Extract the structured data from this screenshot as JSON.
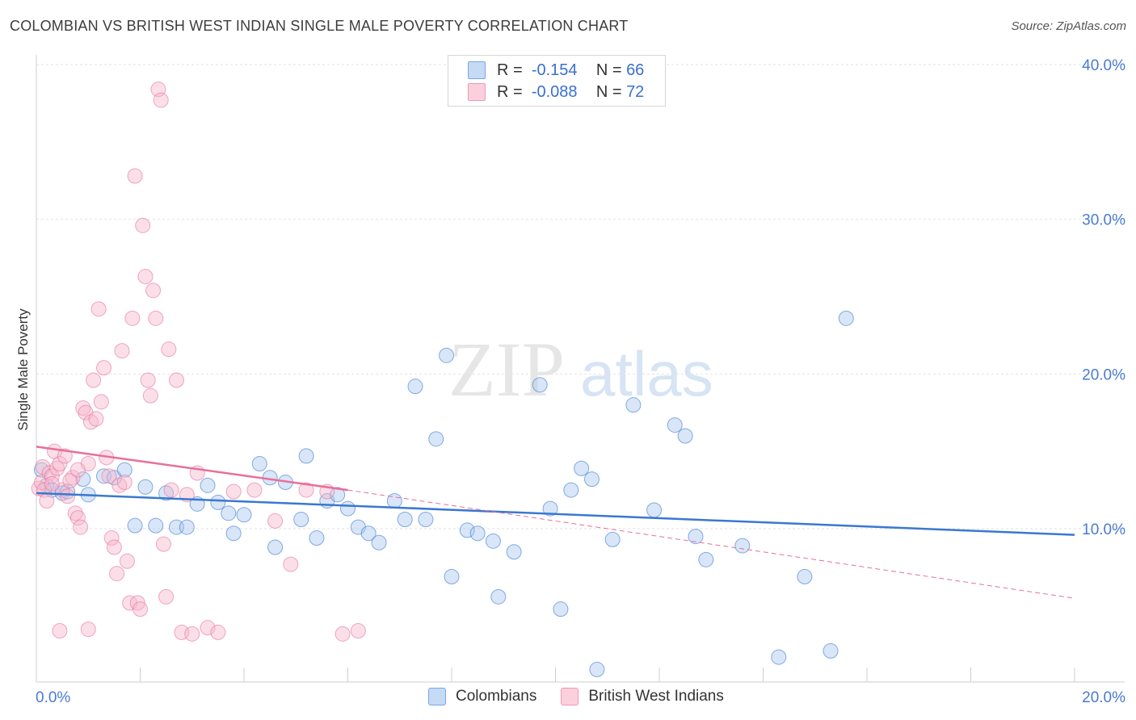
{
  "header": {
    "title": "COLOMBIAN VS BRITISH WEST INDIAN SINGLE MALE POVERTY CORRELATION CHART",
    "source": "Source: ZipAtlas.com"
  },
  "watermark": {
    "part1": "ZIP",
    "part2": "atlas"
  },
  "legend": {
    "rows": [
      {
        "r_label": "R =",
        "r_value": "-0.154",
        "n_label": "N =",
        "n_value": "66",
        "color": "#a8c8f0"
      },
      {
        "r_label": "R =",
        "r_value": "-0.088",
        "n_label": "N =",
        "n_value": "72",
        "color": "#f7b8cb"
      }
    ]
  },
  "bottom_legend": [
    "Colombians",
    "British West Indians"
  ],
  "chart_data": {
    "type": "scatter",
    "title": "COLOMBIAN VS BRITISH WEST INDIAN SINGLE MALE POVERTY CORRELATION CHART",
    "xlabel": "",
    "ylabel": "Single Male Poverty",
    "xlim": [
      0,
      20
    ],
    "ylim": [
      0,
      40
    ],
    "x_tick_labels": [
      "0.0%",
      "20.0%"
    ],
    "y_ticks": [
      10,
      20,
      30,
      40
    ],
    "y_tick_labels": [
      "10.0%",
      "20.0%",
      "30.0%",
      "40.0%"
    ],
    "grid": true,
    "legend_position": "top-center",
    "series": [
      {
        "name": "Colombians",
        "color": "#3a78d0",
        "fill": "#a8c8f0",
        "trend": {
          "x": [
            0,
            20
          ],
          "y": [
            12.3,
            9.6
          ],
          "style": "solid"
        },
        "points": [
          [
            0.1,
            13.8
          ],
          [
            0.2,
            12.8
          ],
          [
            0.3,
            12.5
          ],
          [
            0.5,
            12.3
          ],
          [
            0.6,
            12.4
          ],
          [
            0.9,
            13.2
          ],
          [
            1.0,
            12.2
          ],
          [
            1.3,
            13.4
          ],
          [
            1.5,
            13.3
          ],
          [
            1.7,
            13.8
          ],
          [
            1.9,
            10.2
          ],
          [
            2.1,
            12.7
          ],
          [
            2.3,
            10.2
          ],
          [
            2.5,
            12.3
          ],
          [
            2.7,
            10.1
          ],
          [
            2.9,
            10.1
          ],
          [
            3.1,
            11.6
          ],
          [
            3.3,
            12.8
          ],
          [
            3.5,
            11.7
          ],
          [
            3.7,
            11.0
          ],
          [
            3.8,
            9.7
          ],
          [
            4.0,
            10.9
          ],
          [
            4.3,
            14.2
          ],
          [
            4.5,
            13.3
          ],
          [
            4.6,
            8.8
          ],
          [
            4.8,
            13.0
          ],
          [
            5.1,
            10.6
          ],
          [
            5.2,
            14.7
          ],
          [
            5.4,
            9.4
          ],
          [
            5.6,
            11.8
          ],
          [
            5.8,
            12.2
          ],
          [
            6.0,
            11.3
          ],
          [
            6.2,
            10.1
          ],
          [
            6.4,
            9.7
          ],
          [
            6.6,
            9.1
          ],
          [
            6.9,
            11.8
          ],
          [
            7.1,
            10.6
          ],
          [
            7.3,
            19.2
          ],
          [
            7.5,
            10.6
          ],
          [
            7.7,
            15.8
          ],
          [
            7.9,
            21.2
          ],
          [
            8.0,
            6.9
          ],
          [
            8.3,
            9.9
          ],
          [
            8.5,
            9.7
          ],
          [
            8.8,
            9.2
          ],
          [
            8.9,
            5.6
          ],
          [
            9.2,
            8.5
          ],
          [
            9.7,
            19.3
          ],
          [
            9.9,
            11.3
          ],
          [
            10.1,
            4.8
          ],
          [
            10.3,
            12.5
          ],
          [
            10.5,
            13.9
          ],
          [
            10.7,
            13.2
          ],
          [
            10.8,
            0.9
          ],
          [
            11.1,
            9.3
          ],
          [
            11.5,
            18.0
          ],
          [
            11.9,
            11.2
          ],
          [
            12.3,
            16.7
          ],
          [
            12.5,
            16.0
          ],
          [
            12.7,
            9.5
          ],
          [
            12.9,
            8.0
          ],
          [
            13.6,
            8.9
          ],
          [
            14.3,
            1.7
          ],
          [
            14.8,
            6.9
          ],
          [
            15.3,
            2.1
          ],
          [
            15.6,
            23.6
          ]
        ]
      },
      {
        "name": "British West Indians",
        "color": "#e86f99",
        "fill": "#f7b8cb",
        "trend": {
          "x": [
            0,
            6.0
          ],
          "y": [
            15.3,
            12.5
          ],
          "style": "solid",
          "dashed_x": [
            6.0,
            20
          ],
          "dashed_y": [
            12.5,
            5.5
          ]
        },
        "points": [
          [
            0.05,
            12.6
          ],
          [
            0.1,
            13.0
          ],
          [
            0.12,
            14.0
          ],
          [
            0.15,
            12.5
          ],
          [
            0.2,
            11.8
          ],
          [
            0.25,
            13.6
          ],
          [
            0.3,
            13.4
          ],
          [
            0.35,
            15.0
          ],
          [
            0.4,
            13.9
          ],
          [
            0.45,
            14.2
          ],
          [
            0.5,
            12.5
          ],
          [
            0.55,
            14.7
          ],
          [
            0.6,
            12.1
          ],
          [
            0.7,
            13.3
          ],
          [
            0.75,
            11.0
          ],
          [
            0.8,
            10.7
          ],
          [
            0.85,
            10.1
          ],
          [
            0.9,
            17.8
          ],
          [
            0.95,
            17.5
          ],
          [
            1.0,
            14.2
          ],
          [
            1.05,
            16.9
          ],
          [
            1.1,
            19.6
          ],
          [
            1.15,
            17.1
          ],
          [
            1.2,
            24.2
          ],
          [
            1.25,
            18.2
          ],
          [
            1.3,
            20.4
          ],
          [
            1.35,
            14.6
          ],
          [
            1.4,
            13.4
          ],
          [
            1.45,
            9.4
          ],
          [
            1.5,
            8.8
          ],
          [
            1.55,
            7.1
          ],
          [
            1.6,
            12.8
          ],
          [
            1.65,
            21.5
          ],
          [
            1.7,
            13.0
          ],
          [
            1.75,
            7.9
          ],
          [
            1.8,
            5.2
          ],
          [
            1.85,
            23.6
          ],
          [
            1.9,
            32.8
          ],
          [
            1.95,
            5.2
          ],
          [
            2.0,
            4.8
          ],
          [
            2.05,
            29.6
          ],
          [
            2.1,
            26.3
          ],
          [
            2.15,
            19.6
          ],
          [
            2.2,
            18.6
          ],
          [
            2.25,
            25.4
          ],
          [
            2.3,
            23.6
          ],
          [
            2.35,
            38.4
          ],
          [
            2.4,
            37.7
          ],
          [
            2.45,
            9.0
          ],
          [
            2.5,
            5.6
          ],
          [
            2.55,
            21.6
          ],
          [
            2.6,
            12.5
          ],
          [
            2.7,
            19.6
          ],
          [
            2.8,
            3.3
          ],
          [
            2.9,
            12.2
          ],
          [
            3.0,
            3.2
          ],
          [
            3.1,
            13.6
          ],
          [
            3.3,
            3.6
          ],
          [
            3.5,
            3.3
          ],
          [
            3.8,
            12.4
          ],
          [
            4.2,
            12.5
          ],
          [
            4.6,
            10.5
          ],
          [
            4.9,
            7.7
          ],
          [
            5.2,
            12.5
          ],
          [
            5.6,
            12.4
          ],
          [
            5.9,
            3.2
          ],
          [
            6.2,
            3.4
          ],
          [
            1.0,
            3.5
          ],
          [
            0.45,
            3.4
          ],
          [
            0.3,
            12.9
          ],
          [
            0.65,
            13.1
          ],
          [
            0.8,
            13.8
          ]
        ]
      }
    ]
  }
}
